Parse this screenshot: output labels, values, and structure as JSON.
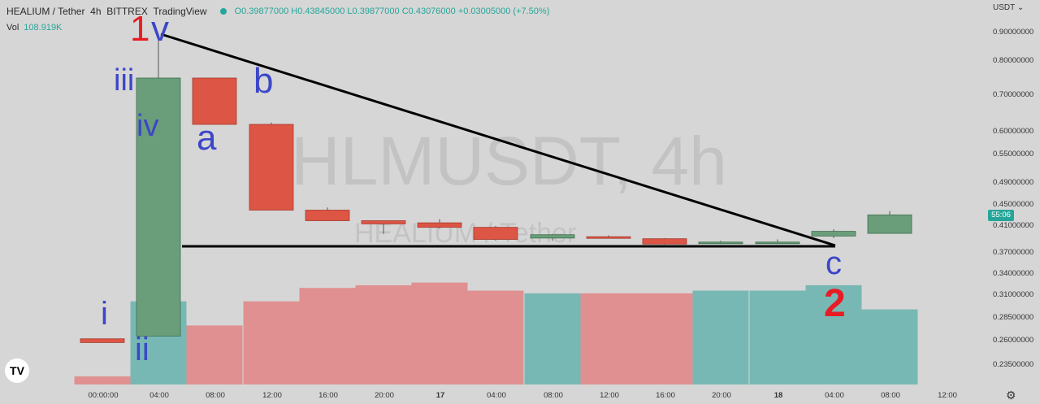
{
  "header": {
    "symbol": "HEALIUM / Tether",
    "interval": "4h",
    "exchange": "BITTREX",
    "source": "TradingView",
    "ohlc": "O0.39877000 H0.43845000 L0.39877000 C0.43076000 +0.03005000 (+7.50%)"
  },
  "volume": {
    "label": "Vol",
    "value": "108.919K"
  },
  "currency": "USDT",
  "countdown": "55:06",
  "watermark": {
    "main": "HLMUSDT, 4h",
    "sub": "HEALIUM / Tether"
  },
  "colors": {
    "up": "#6a9e7a",
    "down": "#dd5544",
    "vol_up": "#78b8b4",
    "vol_down": "#e09090",
    "trendline": "#000000",
    "wave_blue": "#3c46c8",
    "wave_red": "#e81c24"
  },
  "annotations": {
    "w1": "1",
    "v": "v",
    "iii": "iii",
    "iv": "iv",
    "i": "i",
    "ii": "ii",
    "a": "a",
    "b": "b",
    "c": "c",
    "w2": "2"
  },
  "chart_data": {
    "type": "candlestick",
    "price_axis": [
      "0.90000000",
      "0.80000000",
      "0.70000000",
      "0.60000000",
      "0.55000000",
      "0.49000000",
      "0.45000000",
      "0.41000000",
      "0.37000000",
      "0.34000000",
      "0.31000000",
      "0.28500000",
      "0.26000000",
      "0.23500000"
    ],
    "time_axis": [
      "00:00:00",
      "04:00",
      "08:00",
      "12:00",
      "16:00",
      "20:00",
      "17",
      "04:00",
      "08:00",
      "12:00",
      "16:00",
      "20:00",
      "18",
      "04:00",
      "08:00",
      "12:00"
    ],
    "candles": [
      {
        "o": 0.262,
        "h": 0.262,
        "l": 0.258,
        "c": 0.258,
        "vol": 3
      },
      {
        "o": 0.265,
        "h": 0.88,
        "l": 0.265,
        "c": 0.75,
        "vol": 31
      },
      {
        "o": 0.75,
        "h": 0.75,
        "l": 0.62,
        "c": 0.62,
        "vol": 22
      },
      {
        "o": 0.62,
        "h": 0.625,
        "l": 0.44,
        "c": 0.44,
        "vol": 31
      },
      {
        "o": 0.44,
        "h": 0.445,
        "l": 0.42,
        "c": 0.42,
        "vol": 36
      },
      {
        "o": 0.42,
        "h": 0.42,
        "l": 0.398,
        "c": 0.414,
        "vol": 37
      },
      {
        "o": 0.416,
        "h": 0.423,
        "l": 0.406,
        "c": 0.408,
        "vol": 38
      },
      {
        "o": 0.408,
        "h": 0.41,
        "l": 0.388,
        "c": 0.39,
        "vol": 35
      },
      {
        "o": 0.392,
        "h": 0.398,
        "l": 0.388,
        "c": 0.397,
        "vol": 34
      },
      {
        "o": 0.394,
        "h": 0.396,
        "l": 0.392,
        "c": 0.393,
        "vol": 34
      },
      {
        "o": 0.391,
        "h": 0.392,
        "l": 0.382,
        "c": 0.383,
        "vol": 34
      },
      {
        "o": 0.385,
        "h": 0.388,
        "l": 0.383,
        "c": 0.386,
        "vol": 35
      },
      {
        "o": 0.385,
        "h": 0.39,
        "l": 0.383,
        "c": 0.386,
        "vol": 35
      },
      {
        "o": 0.395,
        "h": 0.405,
        "l": 0.392,
        "c": 0.402,
        "vol": 37
      },
      {
        "o": 0.399,
        "h": 0.438,
        "l": 0.399,
        "c": 0.431,
        "vol": 28
      }
    ],
    "volume_unit": "relative"
  }
}
